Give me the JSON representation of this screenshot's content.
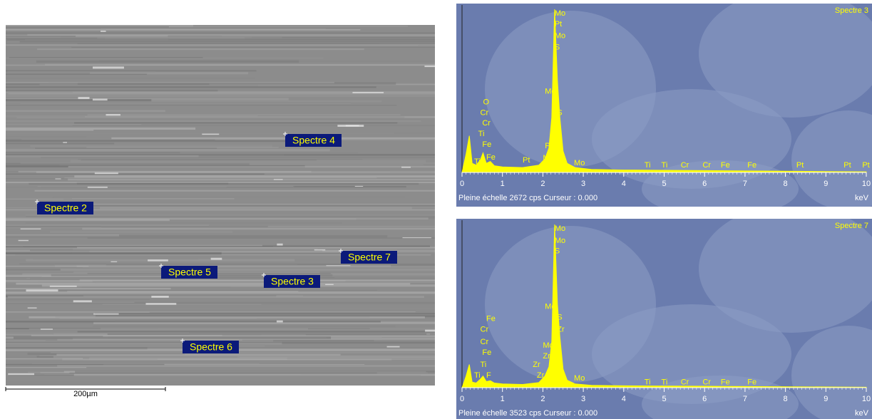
{
  "sem_image": {
    "labels": [
      "Spectre 4",
      "Spectre 2",
      "Spectre 7",
      "Spectre 5",
      "Spectre 3",
      "Spectre 6"
    ],
    "scale_bar": "200µm"
  },
  "chart_data": [
    {
      "type": "area",
      "title": "Spectre 3",
      "footer": "Pleine échelle 2672 cps  Curseur : 0.000",
      "x_label": "keV",
      "color": "#ffff00",
      "xlim": [
        0,
        10
      ],
      "xticks": [
        0,
        1,
        2,
        3,
        4,
        5,
        6,
        7,
        8,
        9,
        10
      ],
      "ylim": [
        0,
        2672
      ],
      "x": [
        0,
        0.1,
        0.18,
        0.25,
        0.35,
        0.45,
        0.52,
        0.6,
        0.7,
        0.8,
        1.0,
        1.5,
        1.9,
        2.05,
        2.15,
        2.22,
        2.29,
        2.36,
        2.42,
        2.5,
        2.6,
        2.8,
        3.2,
        4,
        5,
        6,
        7,
        8,
        9,
        10
      ],
      "values": [
        0,
        300,
        600,
        150,
        120,
        200,
        320,
        150,
        180,
        110,
        90,
        80,
        120,
        220,
        400,
        900,
        2672,
        1500,
        900,
        350,
        150,
        80,
        50,
        40,
        35,
        30,
        25,
        20,
        15,
        10
      ],
      "annotations": [
        {
          "label": "Mo",
          "x": 2.29,
          "y": 2602
        },
        {
          "label": "Pt",
          "x": 2.29,
          "y": 2428
        },
        {
          "label": "Mo",
          "x": 2.29,
          "y": 2231
        },
        {
          "label": "S",
          "x": 2.29,
          "y": 2045
        },
        {
          "label": "Mo",
          "x": 2.05,
          "y": 1325
        },
        {
          "label": "S",
          "x": 2.35,
          "y": 976
        },
        {
          "label": "O",
          "x": 0.52,
          "y": 1150
        },
        {
          "label": "Cr",
          "x": 0.45,
          "y": 976
        },
        {
          "label": "Cr",
          "x": 0.5,
          "y": 802
        },
        {
          "label": "Ti",
          "x": 0.4,
          "y": 627
        },
        {
          "label": "Fe",
          "x": 0.5,
          "y": 453
        },
        {
          "label": "Fe",
          "x": 0.6,
          "y": 244
        },
        {
          "label": "Ti",
          "x": 0.3,
          "y": 174
        },
        {
          "label": "Pt",
          "x": 1.5,
          "y": 198
        },
        {
          "label": "Pt",
          "x": 2.05,
          "y": 430
        },
        {
          "label": "Mo",
          "x": 2.0,
          "y": 232
        },
        {
          "label": "Mo",
          "x": 2.77,
          "y": 151
        },
        {
          "label": "Ti",
          "x": 4.51,
          "y": 116
        },
        {
          "label": "Ti",
          "x": 4.93,
          "y": 116
        },
        {
          "label": "Cr",
          "x": 5.41,
          "y": 116
        },
        {
          "label": "Cr",
          "x": 5.95,
          "y": 116
        },
        {
          "label": "Fe",
          "x": 6.4,
          "y": 116
        },
        {
          "label": "Fe",
          "x": 7.06,
          "y": 116
        },
        {
          "label": "Pt",
          "x": 8.27,
          "y": 116
        },
        {
          "label": "Pt",
          "x": 9.44,
          "y": 116
        },
        {
          "label": "Pt",
          "x": 9.9,
          "y": 116
        }
      ]
    },
    {
      "type": "area",
      "title": "Spectre 7",
      "footer": "Pleine échelle 3523 cps  Curseur : 0.000",
      "x_label": "keV",
      "color": "#ffff00",
      "xlim": [
        0,
        10
      ],
      "xticks": [
        0,
        1,
        2,
        3,
        4,
        5,
        6,
        7,
        8,
        9,
        10
      ],
      "ylim": [
        0,
        3523
      ],
      "x": [
        0,
        0.1,
        0.18,
        0.25,
        0.35,
        0.45,
        0.52,
        0.6,
        0.7,
        0.8,
        1.0,
        1.5,
        1.9,
        2.05,
        2.15,
        2.22,
        2.29,
        2.36,
        2.42,
        2.5,
        2.6,
        2.8,
        3.2,
        4,
        5,
        6,
        7,
        8,
        9,
        10
      ],
      "values": [
        0,
        250,
        500,
        120,
        100,
        180,
        250,
        130,
        150,
        100,
        80,
        70,
        110,
        250,
        450,
        1000,
        3523,
        1800,
        1100,
        400,
        160,
        80,
        50,
        40,
        35,
        30,
        25,
        20,
        15,
        10
      ],
      "annotations": [
        {
          "label": "Mo",
          "x": 2.29,
          "y": 3431
        },
        {
          "label": "Mo",
          "x": 2.29,
          "y": 3171
        },
        {
          "label": "S",
          "x": 2.29,
          "y": 2941
        },
        {
          "label": "Mo",
          "x": 2.05,
          "y": 1746
        },
        {
          "label": "S",
          "x": 2.35,
          "y": 1517
        },
        {
          "label": "Zr",
          "x": 2.35,
          "y": 1256
        },
        {
          "label": "Fe",
          "x": 0.6,
          "y": 1486
        },
        {
          "label": "Cr",
          "x": 0.45,
          "y": 1256
        },
        {
          "label": "Cr",
          "x": 0.45,
          "y": 980
        },
        {
          "label": "Fe",
          "x": 0.5,
          "y": 751
        },
        {
          "label": "Ti",
          "x": 0.45,
          "y": 490
        },
        {
          "label": "Ti",
          "x": 0.3,
          "y": 260
        },
        {
          "label": "F",
          "x": 0.6,
          "y": 260
        },
        {
          "label": "Mo",
          "x": 2.0,
          "y": 904
        },
        {
          "label": "Zr",
          "x": 2.0,
          "y": 674
        },
        {
          "label": "Zr",
          "x": 1.75,
          "y": 490
        },
        {
          "label": "Zr",
          "x": 1.85,
          "y": 260
        },
        {
          "label": "Mo",
          "x": 2.77,
          "y": 199
        },
        {
          "label": "Ti",
          "x": 4.51,
          "y": 116
        },
        {
          "label": "Ti",
          "x": 4.93,
          "y": 116
        },
        {
          "label": "Cr",
          "x": 5.41,
          "y": 116
        },
        {
          "label": "Cr",
          "x": 5.95,
          "y": 116
        },
        {
          "label": "Fe",
          "x": 6.4,
          "y": 116
        },
        {
          "label": "Fe",
          "x": 7.06,
          "y": 116
        }
      ]
    }
  ]
}
